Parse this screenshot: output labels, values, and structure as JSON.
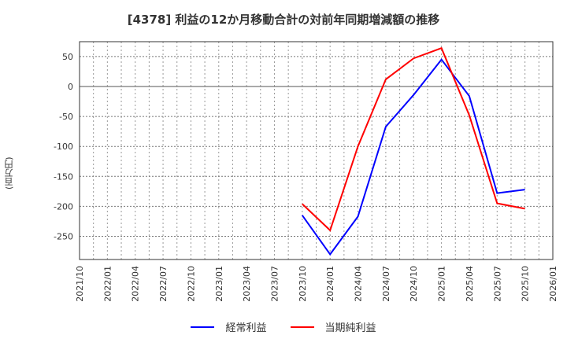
{
  "title": "[4378]  利益の12か月移動合計の対前年同期増減額の推移",
  "y_axis_label": "(百万円)",
  "legend": [
    {
      "label": "経常利益",
      "color": "#0000ff"
    },
    {
      "label": "当期純利益",
      "color": "#ff0000"
    }
  ],
  "chart_data": {
    "type": "line",
    "title": "[4378]  利益の12か月移動合計の対前年同期増減額の推移",
    "xlabel": "",
    "ylabel": "(百万円)",
    "ylim": [
      -285,
      75
    ],
    "yticks": [
      50,
      0,
      -50,
      -100,
      -150,
      -200,
      -250
    ],
    "grid": true,
    "legend_position": "bottom",
    "categories": [
      "2021/10",
      "2022/01",
      "2022/04",
      "2022/07",
      "2022/10",
      "2023/01",
      "2023/04",
      "2023/07",
      "2023/10",
      "2024/01",
      "2024/04",
      "2024/07",
      "2024/10",
      "2025/01",
      "2025/04",
      "2025/07",
      "2025/10",
      "2026/01"
    ],
    "series": [
      {
        "name": "経常利益",
        "color": "#0000ff",
        "values": [
          null,
          null,
          null,
          null,
          null,
          null,
          null,
          null,
          -215,
          -280,
          -217,
          -67,
          -14,
          45,
          -16,
          -178,
          -172,
          null
        ]
      },
      {
        "name": "当期純利益",
        "color": "#ff0000",
        "values": [
          null,
          null,
          null,
          null,
          null,
          null,
          null,
          null,
          -196,
          -240,
          -100,
          12,
          47,
          64,
          -48,
          -195,
          -204,
          null
        ]
      }
    ]
  }
}
